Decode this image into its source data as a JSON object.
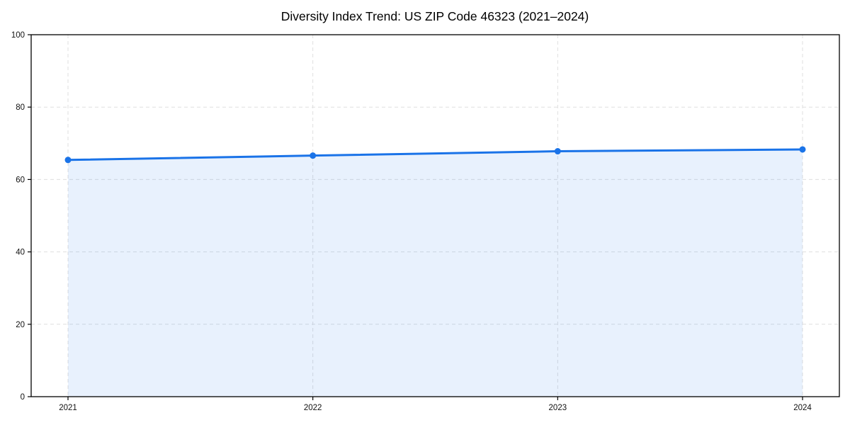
{
  "chart_data": {
    "type": "area",
    "title": "Diversity Index Trend: US ZIP Code 46323 (2021–2024)",
    "categories": [
      "2021",
      "2022",
      "2023",
      "2024"
    ],
    "values": [
      65.4,
      66.6,
      67.8,
      68.3
    ],
    "xlabel": "",
    "ylabel": "",
    "ylim": [
      0,
      100
    ],
    "yticks": [
      0,
      20,
      40,
      60,
      80,
      100
    ],
    "grid": true,
    "grid_style": "dashed",
    "legend": "none",
    "marker": "circle",
    "colors": {
      "line": "#1a73e8",
      "marker": "#1a73e8",
      "fill": "rgba(26,115,232,0.10)",
      "grid": "#dfdfdf",
      "axis": "#000000",
      "text": "#111111",
      "background": "#ffffff"
    }
  }
}
